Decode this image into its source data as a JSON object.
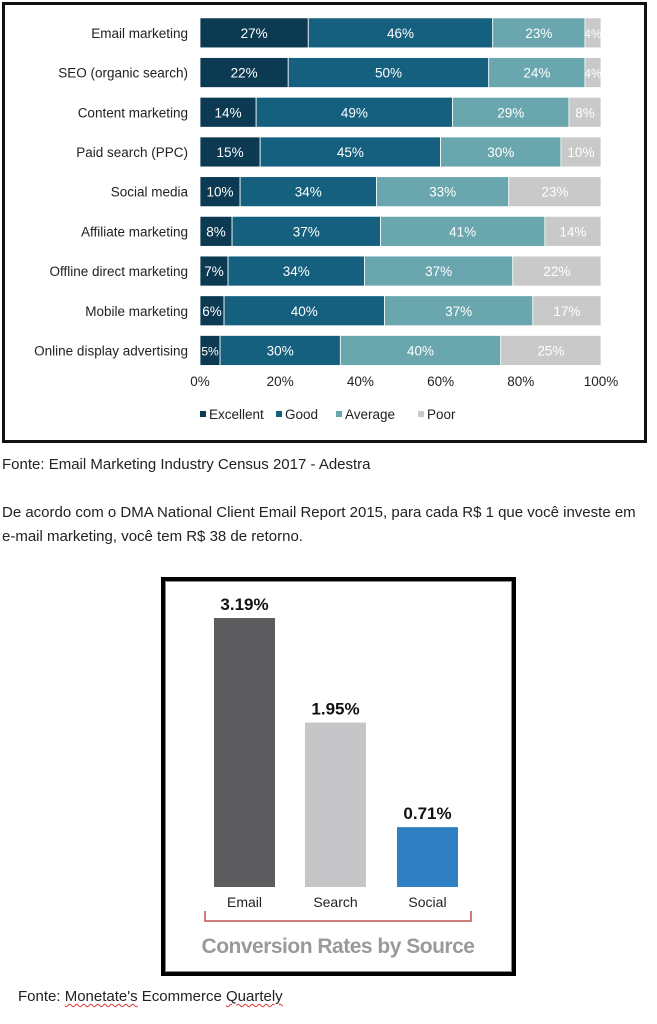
{
  "chart_data": [
    {
      "type": "bar",
      "orientation": "horizontal",
      "stacked": true,
      "categories": [
        "Email marketing",
        "SEO (organic search)",
        "Content marketing",
        "Paid search (PPC)",
        "Social media",
        "Affiliate marketing",
        "Offline direct marketing",
        "Mobile marketing",
        "Online display advertising"
      ],
      "series": [
        {
          "name": "Excellent",
          "color": "#0b3a52",
          "values": [
            27,
            22,
            14,
            15,
            10,
            8,
            7,
            6,
            5
          ]
        },
        {
          "name": "Good",
          "color": "#16607f",
          "values": [
            46,
            50,
            49,
            45,
            34,
            37,
            34,
            40,
            30
          ]
        },
        {
          "name": "Average",
          "color": "#6aa6ae",
          "values": [
            23,
            24,
            29,
            30,
            33,
            41,
            37,
            37,
            40
          ]
        },
        {
          "name": "Poor",
          "color": "#c9c9c9",
          "values": [
            4,
            4,
            8,
            10,
            23,
            14,
            22,
            17,
            25
          ]
        }
      ],
      "xticks": [
        "0%",
        "20%",
        "40%",
        "60%",
        "80%",
        "100%"
      ],
      "xlim": [
        0,
        100
      ],
      "legend_position": "bottom",
      "grid": false
    },
    {
      "type": "bar",
      "categories": [
        "Email",
        "Search",
        "Social"
      ],
      "values": [
        3.19,
        1.95,
        0.71
      ],
      "value_labels": [
        "3.19%",
        "1.95%",
        "0.71%"
      ],
      "colors": [
        "#5c5c5e",
        "#c6c6c8",
        "#2f80c2"
      ],
      "title": "Conversion Rates by Source",
      "ylim": [
        0,
        3.19
      ],
      "grid": false
    }
  ],
  "captions": {
    "chart1_source": "Fonte: Email Marketing Industry Census 2017 - Adestra",
    "paragraph": "De acordo com o DMA National Client Email Report 2015, para cada R$ 1 que você investe em e-mail marketing, você tem R$ 38 de retorno.",
    "chart2_source_prefix": "Fonte: ",
    "chart2_source_word1": "Monetate's",
    "chart2_source_mid": " Ecommerce ",
    "chart2_source_word2": "Quartely"
  }
}
